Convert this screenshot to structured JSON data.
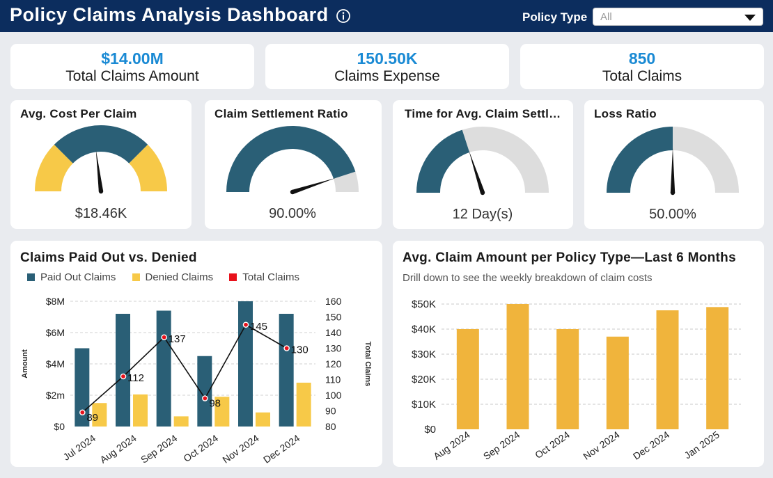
{
  "header": {
    "title": "Policy Claims Analysis Dashboard",
    "filter_label": "Policy Type",
    "filter_value": "All"
  },
  "kpis": [
    {
      "value": "$14.00M",
      "label": "Total Claims Amount"
    },
    {
      "value": "150.50K",
      "label": "Claims Expense"
    },
    {
      "value": "850",
      "label": "Total Claims"
    }
  ],
  "gauges": [
    {
      "title": "Avg. Cost Per Claim",
      "value_text": "$18.46K",
      "min_label": "0",
      "max_label": "40k",
      "value": 18.46,
      "min": 0,
      "max": 40,
      "style": "bands"
    },
    {
      "title": "Claim Settlement Ratio",
      "value_text": "90.00%",
      "min_label": "0",
      "max_label": "100",
      "value": 90,
      "min": 0,
      "max": 100,
      "style": "fill"
    },
    {
      "title": "Time for Avg. Claim Settlement",
      "value_text": "12 Day(s)",
      "min_label": "0",
      "max_label": "30",
      "value": 12,
      "min": 0,
      "max": 30,
      "style": "fill"
    },
    {
      "title": "Loss Ratio",
      "value_text": "50.00%",
      "min_label": "0",
      "max_label": "100",
      "value": 50,
      "min": 0,
      "max": 100,
      "style": "fill"
    }
  ],
  "chart_data": [
    {
      "type": "bar",
      "title": "Claims Paid Out vs. Denied",
      "categories": [
        "Jul 2024",
        "Aug 2024",
        "Sep 2024",
        "Oct 2024",
        "Nov 2024",
        "Dec 2024"
      ],
      "series": [
        {
          "name": "Paid Out Claims",
          "axis": "left",
          "values": [
            5.0,
            7.2,
            7.4,
            4.5,
            8.0,
            7.2
          ]
        },
        {
          "name": "Denied Claims",
          "axis": "left",
          "values": [
            1.5,
            2.05,
            0.65,
            1.9,
            0.9,
            2.8
          ]
        },
        {
          "name": "Total Claims",
          "type": "line",
          "axis": "right",
          "values": [
            89,
            112,
            137,
            98,
            145,
            130
          ]
        }
      ],
      "ylabel": "Amount",
      "y2label": "Total Claims",
      "ylim": [
        0,
        8
      ],
      "y2lim": [
        80,
        160
      ],
      "yticks": [
        "$0",
        "$2m",
        "$4M",
        "$6M",
        "$8M"
      ],
      "y2ticks": [
        "80",
        "90",
        "100",
        "110",
        "120",
        "130",
        "140",
        "150",
        "160"
      ],
      "legend": "top-left",
      "grid": true
    },
    {
      "type": "bar",
      "title": "Avg. Claim Amount per Policy Type—Last 6 Months",
      "subtitle": "Drill down to see the weekly breakdown of claim costs",
      "categories": [
        "Aug 2024",
        "Sep 2024",
        "Oct 2024",
        "Nov 2024",
        "Dec 2024",
        "Jan 2025"
      ],
      "values": [
        40000,
        50000,
        40000,
        37000,
        47500,
        48800
      ],
      "ylim": [
        0,
        50000
      ],
      "yticks": [
        "$0",
        "$10K",
        "$20K",
        "$30K",
        "$40K",
        "$50K"
      ],
      "grid": true
    }
  ],
  "colors": {
    "header": "#0c2d5e",
    "teal": "#2a5f76",
    "gold": "#f0b43c",
    "yellow": "#f7c948",
    "gray_track": "#dddddd",
    "red": "#e8111b",
    "accent": "#1a8ad4"
  }
}
